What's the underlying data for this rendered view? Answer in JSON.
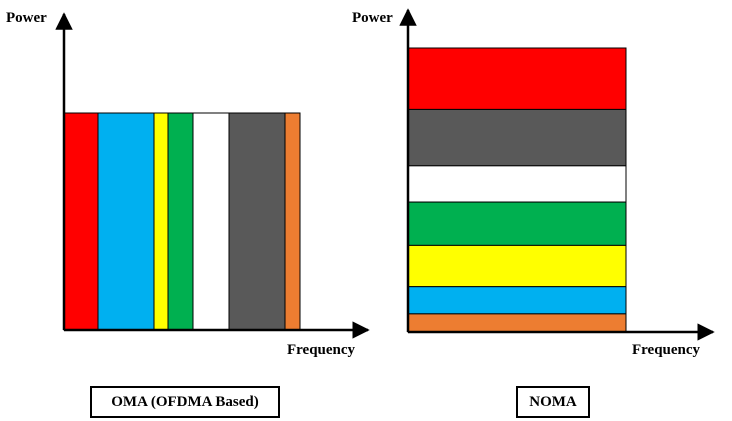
{
  "oma": {
    "y_label": "Power",
    "x_label": "Frequency",
    "caption": "OMA (OFDMA Based)",
    "blocks": [
      {
        "color": "#ff0000",
        "span": 34
      },
      {
        "color": "#00b0f0",
        "span": 56
      },
      {
        "color": "#ffff00",
        "span": 14
      },
      {
        "color": "#00b050",
        "span": 25
      },
      {
        "color": "#ffffff",
        "span": 36
      },
      {
        "color": "#595959",
        "span": 56
      },
      {
        "color": "#ed7d31",
        "span": 15
      }
    ]
  },
  "noma": {
    "y_label": "Power",
    "x_label": "Frequency",
    "caption": "NOMA",
    "layers": [
      {
        "color": "#ff0000",
        "level": 61
      },
      {
        "color": "#595959",
        "level": 56
      },
      {
        "color": "#ffffff",
        "level": 36
      },
      {
        "color": "#00b050",
        "level": 43
      },
      {
        "color": "#ffff00",
        "level": 41
      },
      {
        "color": "#00b0f0",
        "level": 27
      },
      {
        "color": "#ed7d31",
        "level": 18
      }
    ]
  }
}
